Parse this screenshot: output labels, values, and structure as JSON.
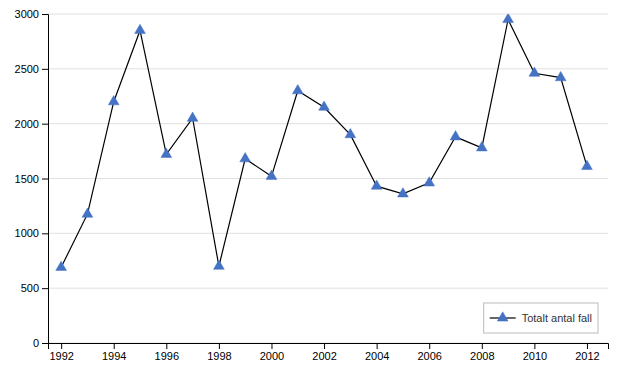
{
  "chart_data": {
    "type": "line",
    "x": [
      1992,
      1993,
      1994,
      1995,
      1996,
      1997,
      1998,
      1999,
      2000,
      2001,
      2002,
      2003,
      2004,
      2005,
      2006,
      2007,
      2008,
      2009,
      2010,
      2011,
      2012
    ],
    "color": "#000000",
    "series": [
      {
        "name": "Totalt antal fall",
        "color": "#4472c4",
        "marker": "triangle",
        "values": [
          690,
          1175,
          2200,
          2850,
          1720,
          2050,
          700,
          1680,
          1520,
          2300,
          2150,
          1900,
          1430,
          1360,
          1460,
          1880,
          1780,
          2950,
          2460,
          2420,
          1610
        ]
      }
    ],
    "xlim": [
      1991.5,
      2012.8
    ],
    "xticks": [
      1992,
      1994,
      1996,
      1998,
      2000,
      2002,
      2004,
      2006,
      2008,
      2010,
      2012
    ],
    "ylim": [
      0,
      3000
    ],
    "yticks": [
      0,
      500,
      1000,
      1500,
      2000,
      2500,
      3000
    ],
    "grid": true,
    "legend": "lower right"
  }
}
